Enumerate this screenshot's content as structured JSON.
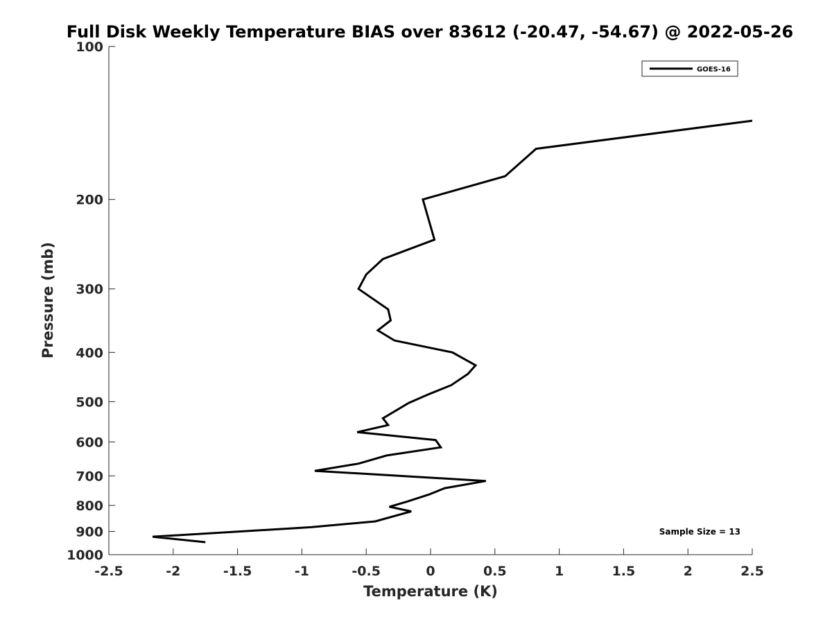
{
  "chart_data": {
    "type": "line",
    "title": "Full Disk Weekly Temperature BIAS over 83612 (-20.47, -54.67) @ 2022-05-26",
    "xlabel": "Temperature (K)",
    "ylabel": "Pressure (mb)",
    "xlim": [
      -2.5,
      2.5
    ],
    "ylim": [
      100,
      1000
    ],
    "yscale": "log",
    "yreversed": true,
    "grid": false,
    "legend_position": "top-right",
    "xticks": [
      -2.5,
      -2,
      -1.5,
      -1,
      -0.5,
      0,
      0.5,
      1,
      1.5,
      2,
      2.5
    ],
    "xtick_labels": [
      "-2.5",
      "-2",
      "-1.5",
      "-1",
      "-0.5",
      "0",
      "0.5",
      "1",
      "1.5",
      "2",
      "2.5"
    ],
    "yticks": [
      100,
      200,
      300,
      400,
      500,
      600,
      700,
      800,
      900,
      1000
    ],
    "ytick_labels": [
      "100",
      "200",
      "300",
      "400",
      "500",
      "600",
      "700",
      "800",
      "900",
      "1000"
    ],
    "series": [
      {
        "name": "GOES-16",
        "color": "#000000",
        "points": [
          {
            "x": 2.5,
            "y": 140
          },
          {
            "x": 0.82,
            "y": 159
          },
          {
            "x": 0.58,
            "y": 180
          },
          {
            "x": -0.06,
            "y": 200
          },
          {
            "x": 0.03,
            "y": 240
          },
          {
            "x": -0.37,
            "y": 262
          },
          {
            "x": -0.5,
            "y": 281
          },
          {
            "x": -0.56,
            "y": 300
          },
          {
            "x": -0.33,
            "y": 329
          },
          {
            "x": -0.31,
            "y": 346
          },
          {
            "x": -0.41,
            "y": 362
          },
          {
            "x": -0.28,
            "y": 379
          },
          {
            "x": 0.17,
            "y": 400
          },
          {
            "x": 0.35,
            "y": 424
          },
          {
            "x": 0.29,
            "y": 441
          },
          {
            "x": 0.16,
            "y": 464
          },
          {
            "x": -0.01,
            "y": 483
          },
          {
            "x": -0.17,
            "y": 503
          },
          {
            "x": -0.37,
            "y": 539
          },
          {
            "x": -0.33,
            "y": 556
          },
          {
            "x": -0.57,
            "y": 574
          },
          {
            "x": 0.04,
            "y": 595
          },
          {
            "x": 0.08,
            "y": 615
          },
          {
            "x": -0.34,
            "y": 638
          },
          {
            "x": -0.56,
            "y": 662
          },
          {
            "x": -0.9,
            "y": 684
          },
          {
            "x": 0.43,
            "y": 716
          },
          {
            "x": 0.11,
            "y": 740
          },
          {
            "x": -0.01,
            "y": 761
          },
          {
            "x": -0.18,
            "y": 786
          },
          {
            "x": -0.32,
            "y": 805
          },
          {
            "x": -0.15,
            "y": 822
          },
          {
            "x": -0.43,
            "y": 860
          },
          {
            "x": -0.93,
            "y": 883
          },
          {
            "x": -2.16,
            "y": 922
          },
          {
            "x": -1.75,
            "y": 945
          }
        ]
      }
    ],
    "annotations": [
      {
        "text": "Sample Size = 13",
        "position": "bottom-right"
      }
    ]
  }
}
